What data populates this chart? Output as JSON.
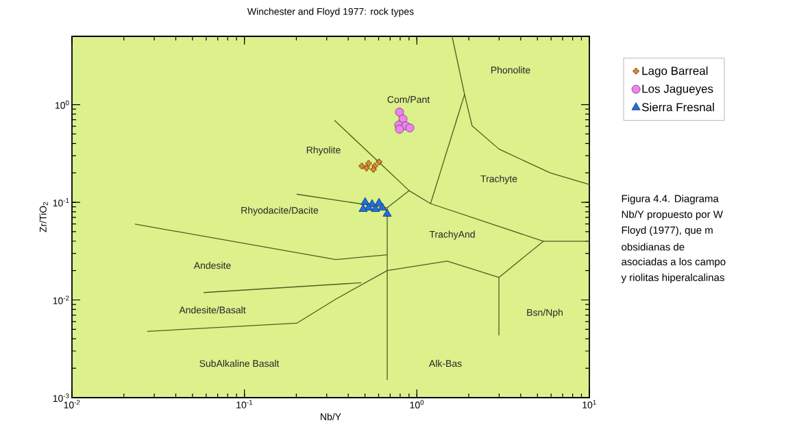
{
  "chart_data": {
    "type": "scatter",
    "title": "Winchester and Floyd 1977: rock types",
    "xlabel": "Nb/Y",
    "ylabel": "Zr/TiO$_{2}$",
    "log": "xy",
    "grid": false,
    "legend": "right",
    "xlim": [
      0.01,
      10
    ],
    "ylim": [
      0.001,
      5
    ],
    "xticks": [
      {
        "value": 0.01,
        "label": "10$^{-2}$"
      },
      {
        "value": 0.1,
        "label": "10$^{-1}$"
      },
      {
        "value": 1,
        "label": "10$^{0}$"
      },
      {
        "value": 10,
        "label": "10$^{1}$"
      }
    ],
    "yticks": [
      {
        "value": 0.001,
        "label": "10$^{-3}$"
      },
      {
        "value": 0.01,
        "label": "10$^{-2}$"
      },
      {
        "value": 0.1,
        "label": "10$^{-1}$"
      },
      {
        "value": 1,
        "label": "10$^{0}$"
      }
    ],
    "series": [
      {
        "type": "line",
        "color": "#4b5e1e",
        "x": [
          0.333,
          0.902,
          1.2,
          5.41,
          10
        ],
        "values": [
          0.69,
          0.1315,
          0.0969,
          0.0399,
          0.0399
        ]
      },
      {
        "type": "line",
        "color": "#4b5e1e",
        "x": [
          0.201,
          0.673,
          0.902
        ],
        "values": [
          0.121,
          0.0879,
          0.1315
        ]
      },
      {
        "type": "line",
        "color": "#4b5e1e",
        "x": [
          0.673,
          0.673
        ],
        "values": [
          0.0879,
          0.00152
        ]
      },
      {
        "type": "line",
        "color": "#4b5e1e",
        "x": [
          0.0232,
          0.339,
          0.673
        ],
        "values": [
          0.0598,
          0.0259,
          0.029
        ]
      },
      {
        "type": "line",
        "color": "#4b5e1e",
        "x": [
          0.058,
          0.475
        ],
        "values": [
          0.0119,
          0.015
        ]
      },
      {
        "type": "line",
        "color": "#4b5e1e",
        "x": [
          0.0273,
          0.201,
          0.339,
          0.673,
          1.5,
          2.99,
          5.41
        ],
        "values": [
          0.00477,
          0.00578,
          0.0102,
          0.02,
          0.025,
          0.017,
          0.0399
        ]
      },
      {
        "type": "line",
        "color": "#4b5e1e",
        "x": [
          2.99,
          2.99
        ],
        "values": [
          0.017,
          0.00433
        ]
      },
      {
        "type": "line",
        "color": "#4b5e1e",
        "x": [
          1.6,
          1.89,
          2.09,
          2.99,
          5.93,
          10
        ],
        "values": [
          5,
          1.27,
          0.607,
          0.351,
          0.2,
          0.152
        ]
      },
      {
        "type": "line",
        "color": "#4b5e1e",
        "x": [
          1.89,
          1.2
        ],
        "values": [
          1.27,
          0.0969
        ]
      },
      {
        "name": "Lago Barreal",
        "marker": "cross",
        "color": "#f28c28",
        "x": [
          0.48,
          0.525,
          0.57,
          0.603,
          0.56,
          0.511
        ],
        "values": [
          0.235,
          0.25,
          0.235,
          0.259,
          0.217,
          0.224
        ]
      },
      {
        "name": "Los Jagueyes",
        "marker": "circle",
        "color": "#ee82ee",
        "x": [
          0.793,
          0.83,
          0.785,
          0.861,
          0.91,
          0.793
        ],
        "values": [
          0.838,
          0.713,
          0.617,
          0.607,
          0.578,
          0.56
        ]
      },
      {
        "name": "Sierra Fresnal",
        "marker": "triangle",
        "color": "#1e6fe0",
        "x": [
          0.501,
          0.55,
          0.603,
          0.525,
          0.575,
          0.631,
          0.673,
          0.488
        ],
        "values": [
          0.1,
          0.0953,
          0.0984,
          0.0879,
          0.0851,
          0.0879,
          0.0761,
          0.0851
        ]
      }
    ],
    "annotations": [
      "Phonolite",
      "Com/Pant",
      "Rhyolite",
      "Trachyte",
      "Rhyodacite/Dacite",
      "TrachyAnd",
      "Andesite",
      "Bsn/Nph",
      "Andesite/Basalt",
      "SubAlkaline Basalt",
      "Alk-Bas",
      "Figura 4.4. Diagrama",
      "Nb/Y propuesto por W",
      "Floyd (1977), que m",
      "obsidianas de",
      "asociadas a los campo",
      "y riolitas hiperalcalinas"
    ]
  }
}
